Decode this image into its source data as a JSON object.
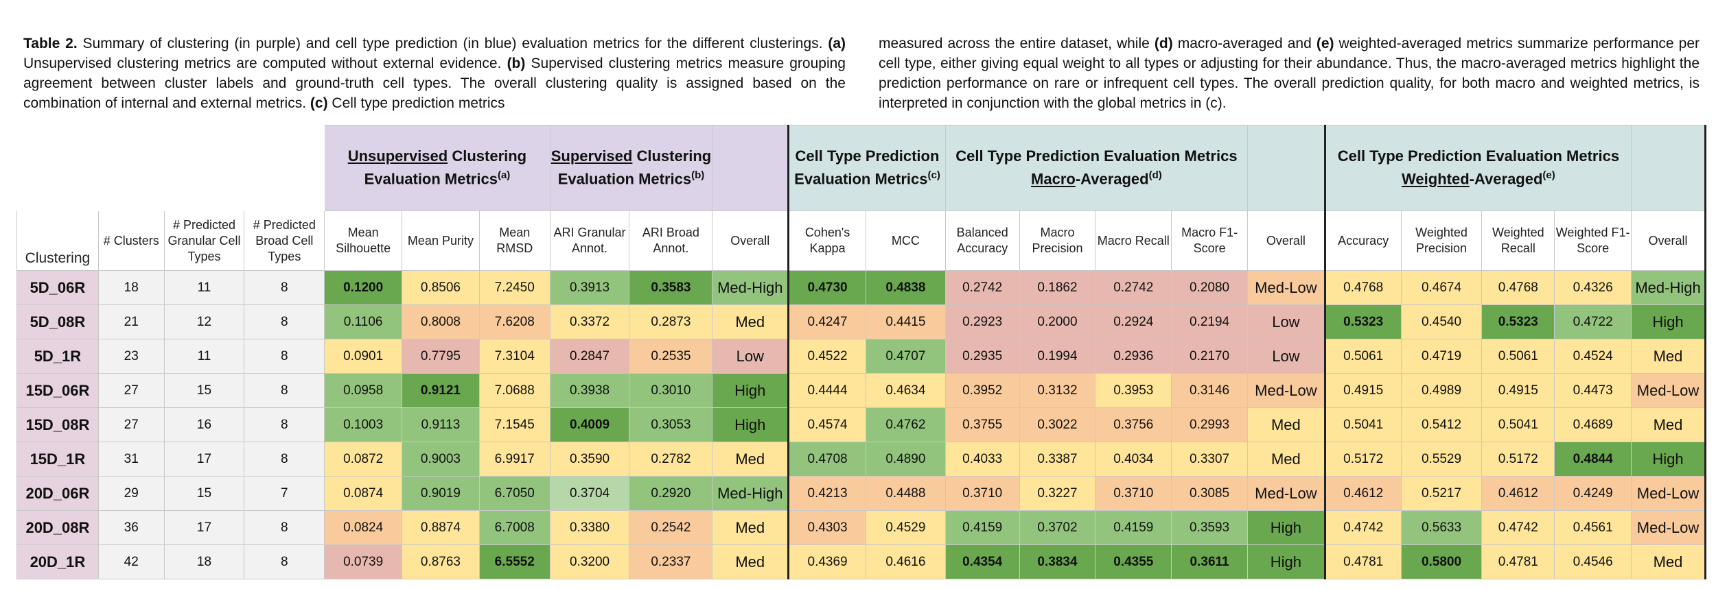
{
  "caption": {
    "left": [
      {
        "t": "Table 2.",
        "b": true
      },
      {
        "t": " Summary of clustering (in purple) and cell type prediction (in blue) evaluation metrics for the different clusterings. ",
        "b": false
      },
      {
        "t": "(a)",
        "b": true
      },
      {
        "t": " Unsupervised clustering metrics are computed without external evidence. ",
        "b": false
      },
      {
        "t": "(b)",
        "b": true
      },
      {
        "t": " Supervised clustering metrics measure grouping agreement between cluster labels and ground-truth cell types. The overall clustering quality is assigned based on the combination of internal and external metrics. ",
        "b": false
      },
      {
        "t": "(c)",
        "b": true
      },
      {
        "t": " Cell type prediction metrics",
        "b": false
      }
    ],
    "right": [
      {
        "t": "measured across the entire dataset, while ",
        "b": false
      },
      {
        "t": "(d)",
        "b": true
      },
      {
        "t": " macro-averaged and ",
        "b": false
      },
      {
        "t": "(e)",
        "b": true
      },
      {
        "t": " weighted-averaged metrics summarize performance per cell type, either giving equal weight to all types or adjusting for their abundance. Thus, the macro-averaged metrics highlight the prediction performance on rare or infrequent cell types. The overall prediction quality, for both macro and weighted metrics, is interpreted in conjunction with the global metrics in (c).",
        "b": false
      }
    ]
  },
  "groups": {
    "unsupervised": {
      "u": "Unsupervised",
      "rest": " Clustering Evaluation Metrics",
      "sup": "(a)"
    },
    "supervised": {
      "u": "Supervised",
      "rest": " Clustering Evaluation Metrics",
      "sup": "(b)"
    },
    "celltype": {
      "text": "Cell Type Prediction Evaluation Metrics",
      "sup": "(c)"
    },
    "macro": {
      "pre": "Cell Type Prediction Evaluation Metrics ",
      "u": "Macro",
      "rest": "-Averaged",
      "sup": "(d)"
    },
    "weighted": {
      "pre": "Cell Type Prediction Evaluation Metrics ",
      "u": "Weighted",
      "rest": "-Averaged",
      "sup": "(e)"
    }
  },
  "columns": [
    "Clustering",
    "# Clusters",
    "# Predicted Granular Cell Types",
    "# Predicted Broad Cell Types",
    "Mean Silhouette",
    "Mean Purity",
    "Mean RMSD",
    "ARI Granular Annot.",
    "ARI Broad Annot.",
    "Overall",
    "Cohen's Kappa",
    "MCC",
    "Balanced Accuracy",
    "Macro Precision",
    "Macro Recall",
    "Macro F1-Score",
    "Overall",
    "Accuracy",
    "Weighted Precision",
    "Weighted Recall",
    "Weighted F1-Score",
    "Overall"
  ],
  "colors": {
    "dg": "#6aa84f",
    "mg": "#93c47d",
    "lg": "#b6d7a8",
    "y": "#ffe599",
    "o": "#f9cb9c",
    "r": "#e6b8af"
  },
  "rows": [
    {
      "name": "5D_06R",
      "info": [
        "18",
        "11",
        "8"
      ],
      "cells": [
        {
          "v": "0.1200",
          "c": "dg",
          "b": true
        },
        {
          "v": "0.8506",
          "c": "y"
        },
        {
          "v": "7.2450",
          "c": "y"
        },
        {
          "v": "0.3913",
          "c": "mg"
        },
        {
          "v": "0.3583",
          "c": "dg",
          "b": true
        },
        {
          "v": "Med-High",
          "c": "mg"
        },
        {
          "v": "0.4730",
          "c": "dg",
          "b": true
        },
        {
          "v": "0.4838",
          "c": "dg",
          "b": true
        },
        {
          "v": "0.2742",
          "c": "r"
        },
        {
          "v": "0.1862",
          "c": "r"
        },
        {
          "v": "0.2742",
          "c": "r"
        },
        {
          "v": "0.2080",
          "c": "r"
        },
        {
          "v": "Med-Low",
          "c": "o"
        },
        {
          "v": "0.4768",
          "c": "y"
        },
        {
          "v": "0.4674",
          "c": "y"
        },
        {
          "v": "0.4768",
          "c": "y"
        },
        {
          "v": "0.4326",
          "c": "y"
        },
        {
          "v": "Med-High",
          "c": "mg"
        }
      ]
    },
    {
      "name": "5D_08R",
      "info": [
        "21",
        "12",
        "8"
      ],
      "cells": [
        {
          "v": "0.1106",
          "c": "mg"
        },
        {
          "v": "0.8008",
          "c": "o"
        },
        {
          "v": "7.6208",
          "c": "o"
        },
        {
          "v": "0.3372",
          "c": "y"
        },
        {
          "v": "0.2873",
          "c": "y"
        },
        {
          "v": "Med",
          "c": "y"
        },
        {
          "v": "0.4247",
          "c": "o"
        },
        {
          "v": "0.4415",
          "c": "o"
        },
        {
          "v": "0.2923",
          "c": "r"
        },
        {
          "v": "0.2000",
          "c": "r"
        },
        {
          "v": "0.2924",
          "c": "r"
        },
        {
          "v": "0.2194",
          "c": "r"
        },
        {
          "v": "Low",
          "c": "r"
        },
        {
          "v": "0.5323",
          "c": "dg",
          "b": true
        },
        {
          "v": "0.4540",
          "c": "y"
        },
        {
          "v": "0.5323",
          "c": "dg",
          "b": true
        },
        {
          "v": "0.4722",
          "c": "mg"
        },
        {
          "v": "High",
          "c": "dg"
        }
      ]
    },
    {
      "name": "5D_1R",
      "info": [
        "23",
        "11",
        "8"
      ],
      "cells": [
        {
          "v": "0.0901",
          "c": "y"
        },
        {
          "v": "0.7795",
          "c": "r"
        },
        {
          "v": "7.3104",
          "c": "y"
        },
        {
          "v": "0.2847",
          "c": "r"
        },
        {
          "v": "0.2535",
          "c": "o"
        },
        {
          "v": "Low",
          "c": "r"
        },
        {
          "v": "0.4522",
          "c": "y"
        },
        {
          "v": "0.4707",
          "c": "mg"
        },
        {
          "v": "0.2935",
          "c": "r"
        },
        {
          "v": "0.1994",
          "c": "r"
        },
        {
          "v": "0.2936",
          "c": "r"
        },
        {
          "v": "0.2170",
          "c": "r"
        },
        {
          "v": "Low",
          "c": "r"
        },
        {
          "v": "0.5061",
          "c": "y"
        },
        {
          "v": "0.4719",
          "c": "y"
        },
        {
          "v": "0.5061",
          "c": "y"
        },
        {
          "v": "0.4524",
          "c": "y"
        },
        {
          "v": "Med",
          "c": "y"
        }
      ]
    },
    {
      "name": "15D_06R",
      "info": [
        "27",
        "15",
        "8"
      ],
      "cells": [
        {
          "v": "0.0958",
          "c": "mg"
        },
        {
          "v": "0.9121",
          "c": "dg",
          "b": true
        },
        {
          "v": "7.0688",
          "c": "y"
        },
        {
          "v": "0.3938",
          "c": "mg"
        },
        {
          "v": "0.3010",
          "c": "mg"
        },
        {
          "v": "High",
          "c": "dg"
        },
        {
          "v": "0.4444",
          "c": "y"
        },
        {
          "v": "0.4634",
          "c": "y"
        },
        {
          "v": "0.3952",
          "c": "o"
        },
        {
          "v": "0.3132",
          "c": "o"
        },
        {
          "v": "0.3953",
          "c": "y"
        },
        {
          "v": "0.3146",
          "c": "o"
        },
        {
          "v": "Med-Low",
          "c": "o"
        },
        {
          "v": "0.4915",
          "c": "y"
        },
        {
          "v": "0.4989",
          "c": "y"
        },
        {
          "v": "0.4915",
          "c": "y"
        },
        {
          "v": "0.4473",
          "c": "y"
        },
        {
          "v": "Med-Low",
          "c": "o"
        }
      ]
    },
    {
      "name": "15D_08R",
      "info": [
        "27",
        "16",
        "8"
      ],
      "cells": [
        {
          "v": "0.1003",
          "c": "mg"
        },
        {
          "v": "0.9113",
          "c": "mg"
        },
        {
          "v": "7.1545",
          "c": "y"
        },
        {
          "v": "0.4009",
          "c": "dg",
          "b": true
        },
        {
          "v": "0.3053",
          "c": "mg"
        },
        {
          "v": "High",
          "c": "dg"
        },
        {
          "v": "0.4574",
          "c": "y"
        },
        {
          "v": "0.4762",
          "c": "mg"
        },
        {
          "v": "0.3755",
          "c": "o"
        },
        {
          "v": "0.3022",
          "c": "o"
        },
        {
          "v": "0.3756",
          "c": "o"
        },
        {
          "v": "0.2993",
          "c": "o"
        },
        {
          "v": "Med",
          "c": "y"
        },
        {
          "v": "0.5041",
          "c": "y"
        },
        {
          "v": "0.5412",
          "c": "y"
        },
        {
          "v": "0.5041",
          "c": "y"
        },
        {
          "v": "0.4689",
          "c": "y"
        },
        {
          "v": "Med",
          "c": "y"
        }
      ]
    },
    {
      "name": "15D_1R",
      "info": [
        "31",
        "17",
        "8"
      ],
      "cells": [
        {
          "v": "0.0872",
          "c": "y"
        },
        {
          "v": "0.9003",
          "c": "mg"
        },
        {
          "v": "6.9917",
          "c": "y"
        },
        {
          "v": "0.3590",
          "c": "y"
        },
        {
          "v": "0.2782",
          "c": "y"
        },
        {
          "v": "Med",
          "c": "y"
        },
        {
          "v": "0.4708",
          "c": "mg"
        },
        {
          "v": "0.4890",
          "c": "mg"
        },
        {
          "v": "0.4033",
          "c": "y"
        },
        {
          "v": "0.3387",
          "c": "y"
        },
        {
          "v": "0.4034",
          "c": "y"
        },
        {
          "v": "0.3307",
          "c": "y"
        },
        {
          "v": "Med",
          "c": "y"
        },
        {
          "v": "0.5172",
          "c": "y"
        },
        {
          "v": "0.5529",
          "c": "y"
        },
        {
          "v": "0.5172",
          "c": "y"
        },
        {
          "v": "0.4844",
          "c": "dg",
          "b": true
        },
        {
          "v": "High",
          "c": "dg"
        }
      ]
    },
    {
      "name": "20D_06R",
      "info": [
        "29",
        "15",
        "7"
      ],
      "cells": [
        {
          "v": "0.0874",
          "c": "y"
        },
        {
          "v": "0.9019",
          "c": "mg"
        },
        {
          "v": "6.7050",
          "c": "mg"
        },
        {
          "v": "0.3704",
          "c": "lg"
        },
        {
          "v": "0.2920",
          "c": "mg"
        },
        {
          "v": "Med-High",
          "c": "mg"
        },
        {
          "v": "0.4213",
          "c": "o"
        },
        {
          "v": "0.4488",
          "c": "o"
        },
        {
          "v": "0.3710",
          "c": "o"
        },
        {
          "v": "0.3227",
          "c": "y"
        },
        {
          "v": "0.3710",
          "c": "o"
        },
        {
          "v": "0.3085",
          "c": "o"
        },
        {
          "v": "Med-Low",
          "c": "o"
        },
        {
          "v": "0.4612",
          "c": "o"
        },
        {
          "v": "0.5217",
          "c": "y"
        },
        {
          "v": "0.4612",
          "c": "o"
        },
        {
          "v": "0.4249",
          "c": "o"
        },
        {
          "v": "Med-Low",
          "c": "o"
        }
      ]
    },
    {
      "name": "20D_08R",
      "info": [
        "36",
        "17",
        "8"
      ],
      "cells": [
        {
          "v": "0.0824",
          "c": "o"
        },
        {
          "v": "0.8874",
          "c": "y"
        },
        {
          "v": "6.7008",
          "c": "mg"
        },
        {
          "v": "0.3380",
          "c": "y"
        },
        {
          "v": "0.2542",
          "c": "o"
        },
        {
          "v": "Med",
          "c": "y"
        },
        {
          "v": "0.4303",
          "c": "o"
        },
        {
          "v": "0.4529",
          "c": "y"
        },
        {
          "v": "0.4159",
          "c": "mg"
        },
        {
          "v": "0.3702",
          "c": "mg"
        },
        {
          "v": "0.4159",
          "c": "mg"
        },
        {
          "v": "0.3593",
          "c": "mg"
        },
        {
          "v": "High",
          "c": "dg"
        },
        {
          "v": "0.4742",
          "c": "y"
        },
        {
          "v": "0.5633",
          "c": "mg"
        },
        {
          "v": "0.4742",
          "c": "y"
        },
        {
          "v": "0.4561",
          "c": "y"
        },
        {
          "v": "Med-Low",
          "c": "o"
        }
      ]
    },
    {
      "name": "20D_1R",
      "info": [
        "42",
        "18",
        "8"
      ],
      "cells": [
        {
          "v": "0.0739",
          "c": "r"
        },
        {
          "v": "0.8763",
          "c": "y"
        },
        {
          "v": "6.5552",
          "c": "dg",
          "b": true
        },
        {
          "v": "0.3200",
          "c": "y"
        },
        {
          "v": "0.2337",
          "c": "o"
        },
        {
          "v": "Med",
          "c": "y"
        },
        {
          "v": "0.4369",
          "c": "y"
        },
        {
          "v": "0.4616",
          "c": "y"
        },
        {
          "v": "0.4354",
          "c": "dg",
          "b": true
        },
        {
          "v": "0.3834",
          "c": "dg",
          "b": true
        },
        {
          "v": "0.4355",
          "c": "dg",
          "b": true
        },
        {
          "v": "0.3611",
          "c": "dg",
          "b": true
        },
        {
          "v": "High",
          "c": "dg"
        },
        {
          "v": "0.4781",
          "c": "y"
        },
        {
          "v": "0.5800",
          "c": "dg",
          "b": true
        },
        {
          "v": "0.4781",
          "c": "y"
        },
        {
          "v": "0.4546",
          "c": "y"
        },
        {
          "v": "Med",
          "c": "y"
        }
      ]
    }
  ]
}
